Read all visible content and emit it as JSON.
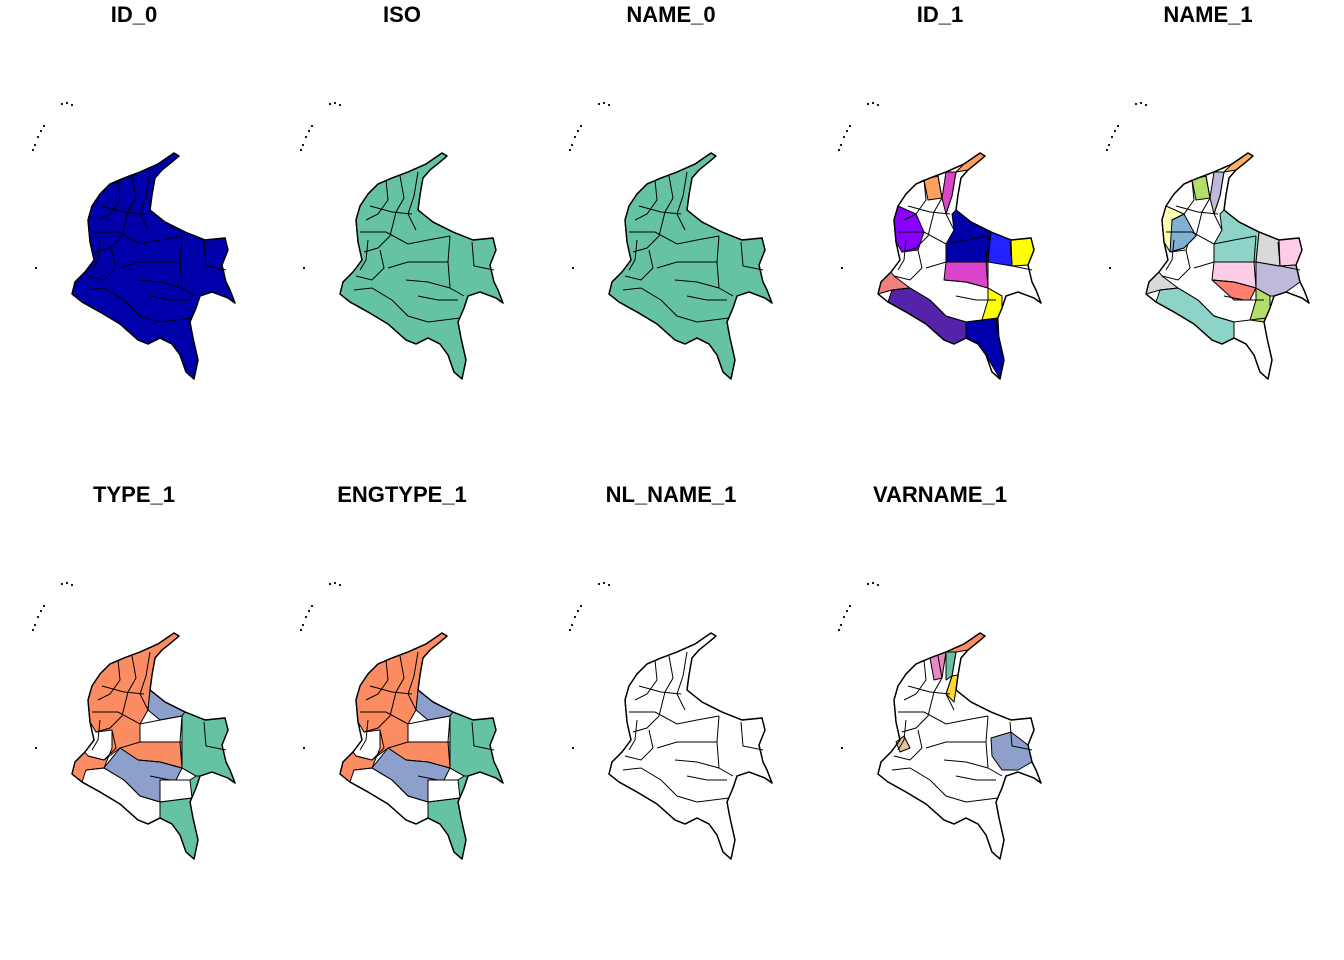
{
  "panels": [
    {
      "title": "ID_0",
      "scheme": "single",
      "fill": "#0000AA"
    },
    {
      "title": "ISO",
      "scheme": "single",
      "fill": "#66C2A5"
    },
    {
      "title": "NAME_0",
      "scheme": "single",
      "fill": "#66C2A5"
    },
    {
      "title": "ID_1",
      "scheme": "multi",
      "palette": [
        "#0000AA",
        "#2222FF",
        "#8800FF",
        "#DD44CC",
        "#F08080",
        "#FFFF00",
        "#FFA060",
        "#5522AA"
      ]
    },
    {
      "title": "NAME_1",
      "scheme": "multi",
      "palette": [
        "#8DD3C7",
        "#FFFFB3",
        "#BEBADA",
        "#FB8072",
        "#80B1D3",
        "#FDB462",
        "#B3DE69",
        "#FCCDE5",
        "#D9D9D9",
        "#BC80BD",
        "#CCEBC5",
        "#FFED6F"
      ]
    },
    {
      "title": "TYPE_1",
      "scheme": "type",
      "palette": [
        "#FC8D62",
        "#8DA0CB",
        "#66C2A5"
      ]
    },
    {
      "title": "ENGTYPE_1",
      "scheme": "type",
      "palette": [
        "#FC8D62",
        "#8DA0CB",
        "#66C2A5"
      ]
    },
    {
      "title": "NL_NAME_1",
      "scheme": "single",
      "fill": "#FFFFFF"
    },
    {
      "title": "VARNAME_1",
      "scheme": "var",
      "palette": [
        "#FFFFFF",
        "#FC8D62",
        "#E78AC3",
        "#66C2A5",
        "#FFD92F",
        "#8DA0CB",
        "#E5C494"
      ]
    }
  ]
}
